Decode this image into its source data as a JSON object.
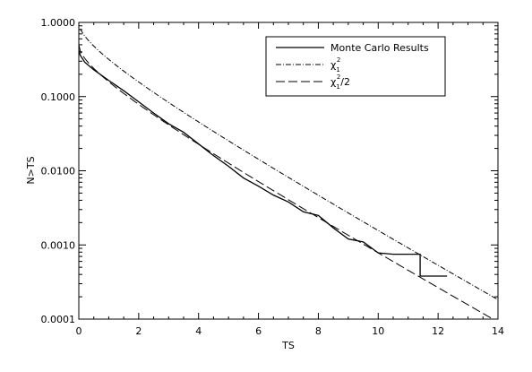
{
  "chart_data": {
    "type": "line",
    "title": "",
    "xlabel": "TS",
    "ylabel": "N>TS",
    "xlim": [
      0,
      14
    ],
    "ylim": [
      0.0001,
      1.0
    ],
    "yscale": "log",
    "grid": false,
    "legend_position": "top-right",
    "x_ticks": [
      "0",
      "2",
      "4",
      "6",
      "8",
      "10",
      "12",
      "14"
    ],
    "y_ticks": [
      "0.0001",
      "0.0010",
      "0.0100",
      "0.1000",
      "1.0000"
    ],
    "series": [
      {
        "name": "Monte Carlo Results",
        "style": "solid",
        "color": "#000000",
        "x": [
          0.0,
          0.05,
          0.2,
          0.5,
          1.0,
          1.5,
          2.0,
          2.5,
          3.0,
          3.5,
          4.0,
          4.5,
          5.0,
          5.5,
          6.0,
          6.5,
          7.0,
          7.5,
          8.0,
          8.5,
          9.0,
          9.5,
          10.0,
          10.5,
          11.0,
          11.4,
          11.4,
          12.3
        ],
        "y": [
          0.42,
          0.36,
          0.29,
          0.23,
          0.165,
          0.12,
          0.085,
          0.06,
          0.043,
          0.033,
          0.023,
          0.016,
          0.0115,
          0.008,
          0.0062,
          0.0047,
          0.0038,
          0.0028,
          0.0025,
          0.0017,
          0.0012,
          0.0011,
          0.00078,
          0.00075,
          0.00075,
          0.00075,
          0.00038,
          0.00038
        ]
      },
      {
        "name": "χ₁²",
        "legend_label_base": "χ",
        "legend_label_sub": "1",
        "legend_label_sup": "2",
        "style": "dash-dot",
        "color": "#000000",
        "function": "chi2_1_sf",
        "scale": 1.0
      },
      {
        "name": "χ₁²/2",
        "legend_label_base": "χ",
        "legend_label_sub": "1",
        "legend_label_sup": "2",
        "legend_label_suffix": "/2",
        "style": "long-dash",
        "color": "#000000",
        "function": "chi2_1_sf",
        "scale": 0.5
      }
    ]
  }
}
